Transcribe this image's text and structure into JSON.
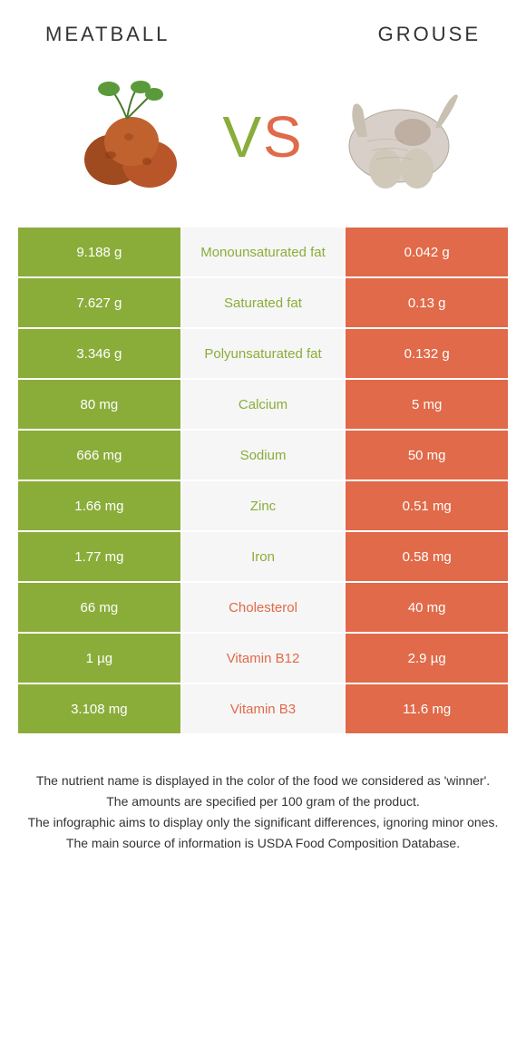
{
  "header": {
    "left_title": "Meatball",
    "right_title": "Grouse"
  },
  "vs": {
    "v": "V",
    "s": "S"
  },
  "colors": {
    "left": "#8aad3a",
    "right": "#e06a49",
    "mid_bg": "#f6f6f6"
  },
  "rows": [
    {
      "left": "9.188 g",
      "label": "Monounsaturated fat",
      "right": "0.042 g",
      "winner": "left"
    },
    {
      "left": "7.627 g",
      "label": "Saturated fat",
      "right": "0.13 g",
      "winner": "left"
    },
    {
      "left": "3.346 g",
      "label": "Polyunsaturated fat",
      "right": "0.132 g",
      "winner": "left"
    },
    {
      "left": "80 mg",
      "label": "Calcium",
      "right": "5 mg",
      "winner": "left"
    },
    {
      "left": "666 mg",
      "label": "Sodium",
      "right": "50 mg",
      "winner": "left"
    },
    {
      "left": "1.66 mg",
      "label": "Zinc",
      "right": "0.51 mg",
      "winner": "left"
    },
    {
      "left": "1.77 mg",
      "label": "Iron",
      "right": "0.58 mg",
      "winner": "left"
    },
    {
      "left": "66 mg",
      "label": "Cholesterol",
      "right": "40 mg",
      "winner": "right"
    },
    {
      "left": "1 µg",
      "label": "Vitamin B12",
      "right": "2.9 µg",
      "winner": "right"
    },
    {
      "left": "3.108 mg",
      "label": "Vitamin B3",
      "right": "11.6 mg",
      "winner": "right"
    }
  ],
  "footer": {
    "line1": "The nutrient name is displayed in the color of the food we considered as 'winner'.",
    "line2": "The amounts are specified per 100 gram of the product.",
    "line3": "The infographic aims to display only the significant differences, ignoring minor ones.",
    "line4": "The main source of information is USDA Food Composition Database."
  }
}
